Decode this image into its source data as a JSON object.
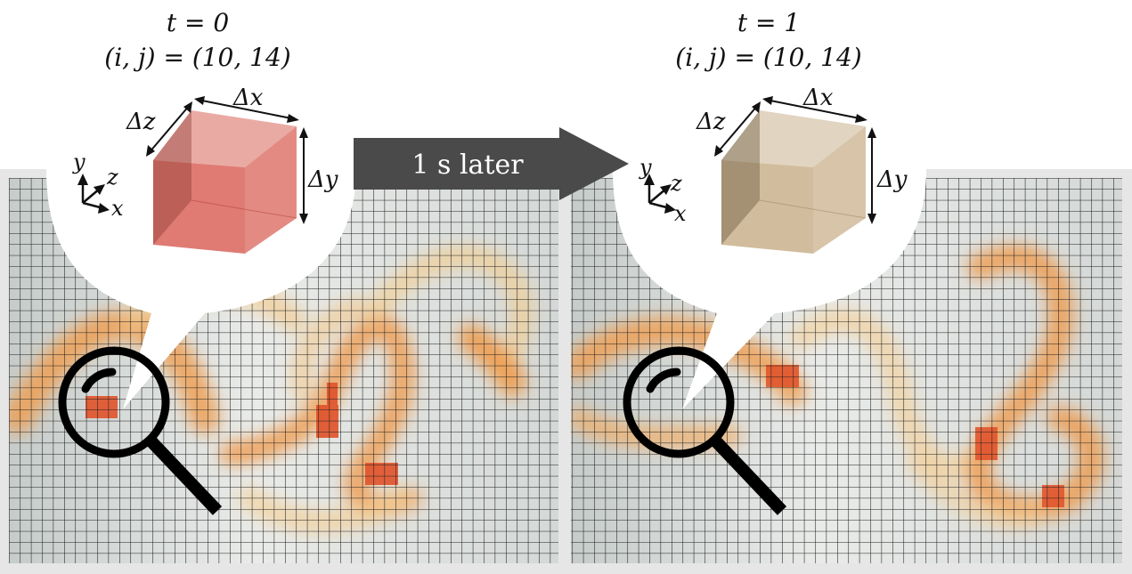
{
  "left_panel": {
    "time_label": "t = 0",
    "index_label": "(i, j) = (10, 14)",
    "cube_color": "#d9645a",
    "labels": {
      "dx": "Δx",
      "dy": "Δy",
      "dz": "Δz"
    },
    "axes": {
      "x": "x",
      "y": "y",
      "z": "z"
    }
  },
  "arrow": {
    "label": "1 s later",
    "color": "#4a4a4a"
  },
  "right_panel": {
    "time_label": "t = 1",
    "index_label": "(i, j) = (10, 14)",
    "cube_color": "#c9b08c",
    "labels": {
      "dx": "Δx",
      "dy": "Δy",
      "dz": "Δz"
    },
    "axes": {
      "x": "x",
      "y": "y",
      "z": "z"
    }
  },
  "grid": {
    "line_color": "#1e1e1e",
    "background": "#e2e4e2",
    "frame": "#e6e6e6"
  },
  "colors": {
    "fluid_light": "#f1c887",
    "fluid_mid": "#ec9b4d",
    "fluid_dark": "#e0522a"
  }
}
